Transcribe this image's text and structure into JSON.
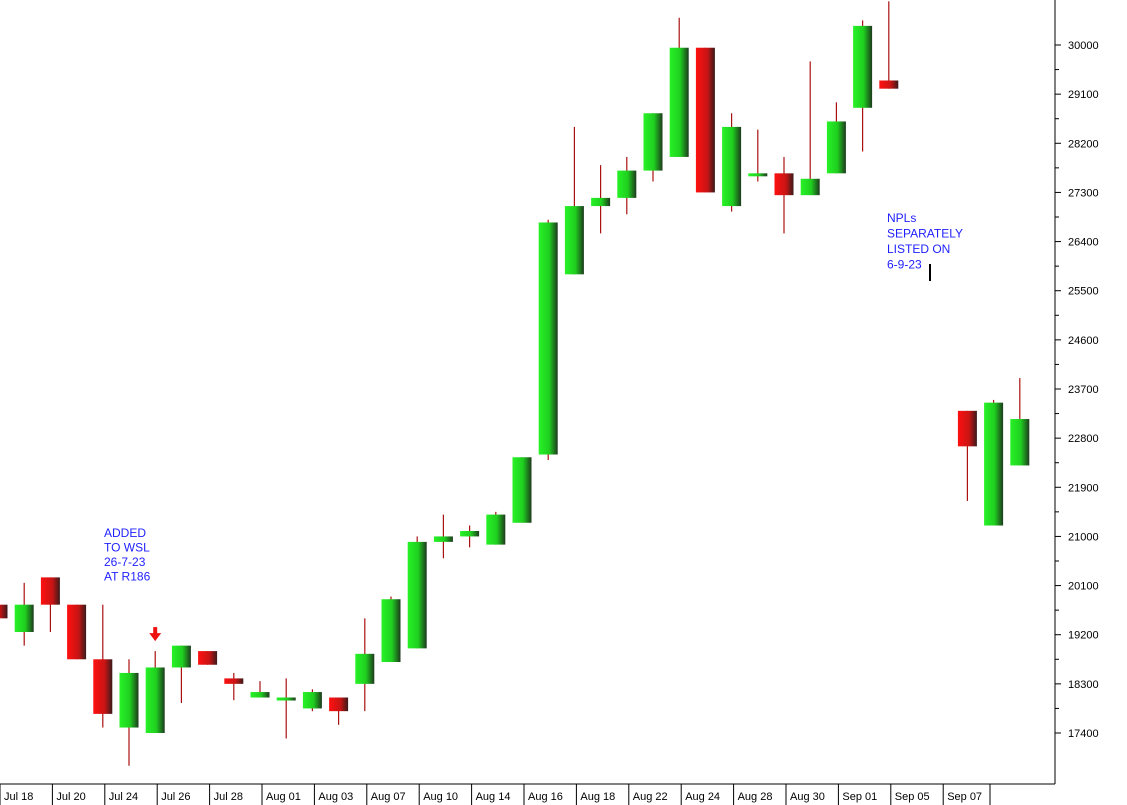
{
  "chart_data": {
    "type": "candlestick",
    "title": "",
    "xlabel": "",
    "ylabel": "",
    "ylim": [
      16600,
      30800
    ],
    "yticks": [
      17400,
      18300,
      19200,
      20100,
      21000,
      21900,
      22800,
      23700,
      24600,
      25500,
      26400,
      27300,
      28200,
      29100,
      30000
    ],
    "xtick_labels": [
      "Jul 18",
      "Jul 20",
      "Jul 24",
      "Jul 26",
      "Jul 28",
      "Aug 01",
      "Aug 03",
      "Aug 07",
      "Aug 10",
      "Aug 14",
      "Aug 16",
      "Aug 18",
      "Aug 22",
      "Aug 24",
      "Aug 28",
      "Aug 30",
      "Sep 01",
      "Sep 05",
      "Sep 07"
    ],
    "grid": false,
    "colors": {
      "up": "#22dd22",
      "down": "#dd1111",
      "wick": "#aa1111",
      "annotation": "#1f1fff"
    },
    "candles": [
      {
        "o": 19750,
        "h": 19750,
        "l": 19500,
        "c": 19500
      },
      {
        "o": 19250,
        "h": 20150,
        "l": 19000,
        "c": 19750
      },
      {
        "o": 20250,
        "h": 20250,
        "l": 19250,
        "c": 19750
      },
      {
        "o": 19750,
        "h": 19750,
        "l": 18750,
        "c": 18750
      },
      {
        "o": 18750,
        "h": 19750,
        "l": 17500,
        "c": 17750
      },
      {
        "o": 17500,
        "h": 18750,
        "l": 16800,
        "c": 18500
      },
      {
        "o": 17400,
        "h": 18900,
        "l": 17400,
        "c": 18600
      },
      {
        "o": 18600,
        "h": 19000,
        "l": 17950,
        "c": 19000
      },
      {
        "o": 18900,
        "h": 18900,
        "l": 18650,
        "c": 18650
      },
      {
        "o": 18400,
        "h": 18500,
        "l": 18000,
        "c": 18300
      },
      {
        "o": 18050,
        "h": 18350,
        "l": 18050,
        "c": 18150
      },
      {
        "o": 18000,
        "h": 18400,
        "l": 17300,
        "c": 18050
      },
      {
        "o": 17850,
        "h": 18200,
        "l": 17800,
        "c": 18150
      },
      {
        "o": 18050,
        "h": 18050,
        "l": 17550,
        "c": 17800
      },
      {
        "o": 18300,
        "h": 19500,
        "l": 17800,
        "c": 18850
      },
      {
        "o": 18700,
        "h": 19900,
        "l": 18700,
        "c": 19850
      },
      {
        "o": 18950,
        "h": 21000,
        "l": 18950,
        "c": 20900
      },
      {
        "o": 20900,
        "h": 21400,
        "l": 20600,
        "c": 21000
      },
      {
        "o": 21000,
        "h": 21200,
        "l": 20800,
        "c": 21100
      },
      {
        "o": 20850,
        "h": 21450,
        "l": 20850,
        "c": 21400
      },
      {
        "o": 21250,
        "h": 22450,
        "l": 21250,
        "c": 22450
      },
      {
        "o": 22500,
        "h": 26800,
        "l": 22400,
        "c": 26750
      },
      {
        "o": 25800,
        "h": 28500,
        "l": 25800,
        "c": 27050
      },
      {
        "o": 27050,
        "h": 27800,
        "l": 26550,
        "c": 27200
      },
      {
        "o": 27200,
        "h": 27950,
        "l": 26900,
        "c": 27700
      },
      {
        "o": 27700,
        "h": 28750,
        "l": 27500,
        "c": 28750
      },
      {
        "o": 27950,
        "h": 30500,
        "l": 27950,
        "c": 29950
      },
      {
        "o": 29950,
        "h": 29950,
        "l": 27300,
        "c": 27300
      },
      {
        "o": 27050,
        "h": 28750,
        "l": 26950,
        "c": 28500
      },
      {
        "o": 27600,
        "h": 28450,
        "l": 27500,
        "c": 27650
      },
      {
        "o": 27650,
        "h": 27950,
        "l": 26550,
        "c": 27250
      },
      {
        "o": 27250,
        "h": 29700,
        "l": 27250,
        "c": 27550
      },
      {
        "o": 27650,
        "h": 28950,
        "l": 27650,
        "c": 28600
      },
      {
        "o": 28850,
        "h": 30450,
        "l": 28050,
        "c": 30350
      },
      {
        "o": 29350,
        "h": 30800,
        "l": 29200,
        "c": 29200
      },
      {
        "o": 23300,
        "h": 23300,
        "l": 21650,
        "c": 22650
      },
      {
        "o": 21200,
        "h": 23500,
        "l": 21200,
        "c": 23450
      },
      {
        "o": 22300,
        "h": 23900,
        "l": 22300,
        "c": 23150
      }
    ],
    "gap_after_index": 34,
    "arrow_index": 6,
    "annotations": [
      {
        "id": "added",
        "lines": [
          "ADDED",
          "TO WSL",
          "26-7-23",
          "AT R186"
        ]
      },
      {
        "id": "npls",
        "lines": [
          "NPLs",
          "SEPARATELY",
          "LISTED ON",
          "6-9-23"
        ]
      }
    ]
  }
}
